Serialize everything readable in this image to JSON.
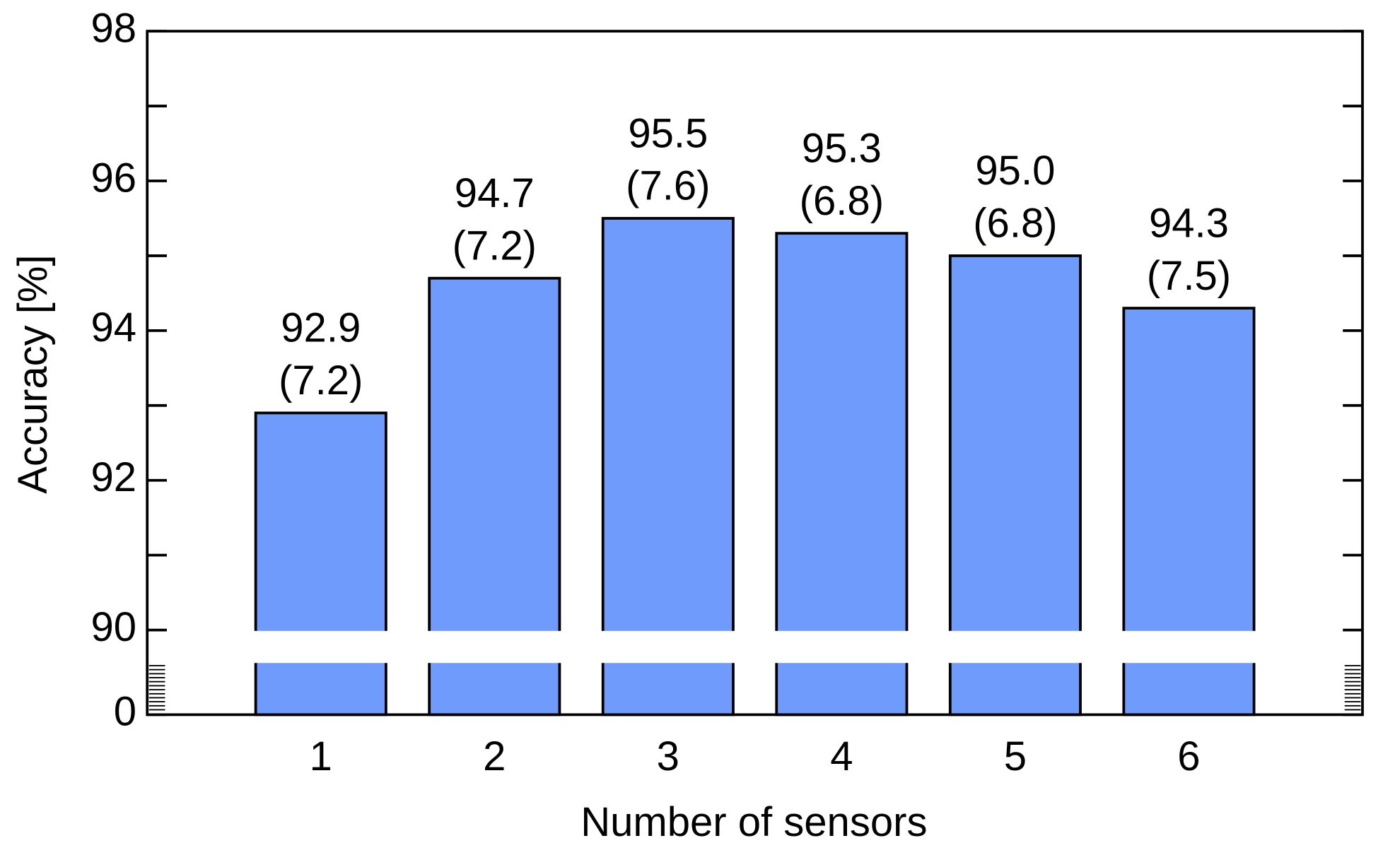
{
  "chart_data": {
    "type": "bar",
    "x_label": "Number of sensors",
    "y_label": "Accuracy [%]",
    "categories": [
      "1",
      "2",
      "3",
      "4",
      "5",
      "6"
    ],
    "values": [
      92.9,
      94.7,
      95.5,
      95.3,
      95.0,
      94.3
    ],
    "value_labels": [
      "92.9",
      "94.7",
      "95.5",
      "95.3",
      "95.0",
      "94.3"
    ],
    "std_labels": [
      "(7.2)",
      "(7.2)",
      "(7.6)",
      "(6.8)",
      "(6.8)",
      "(7.5)"
    ],
    "color": "#6f9bfc",
    "ylim": [
      0,
      98
    ],
    "ybreak": [
      0,
      90
    ],
    "yticks": [
      0,
      90,
      92,
      94,
      96,
      98
    ],
    "yminor": [
      91,
      93,
      95,
      97
    ]
  }
}
